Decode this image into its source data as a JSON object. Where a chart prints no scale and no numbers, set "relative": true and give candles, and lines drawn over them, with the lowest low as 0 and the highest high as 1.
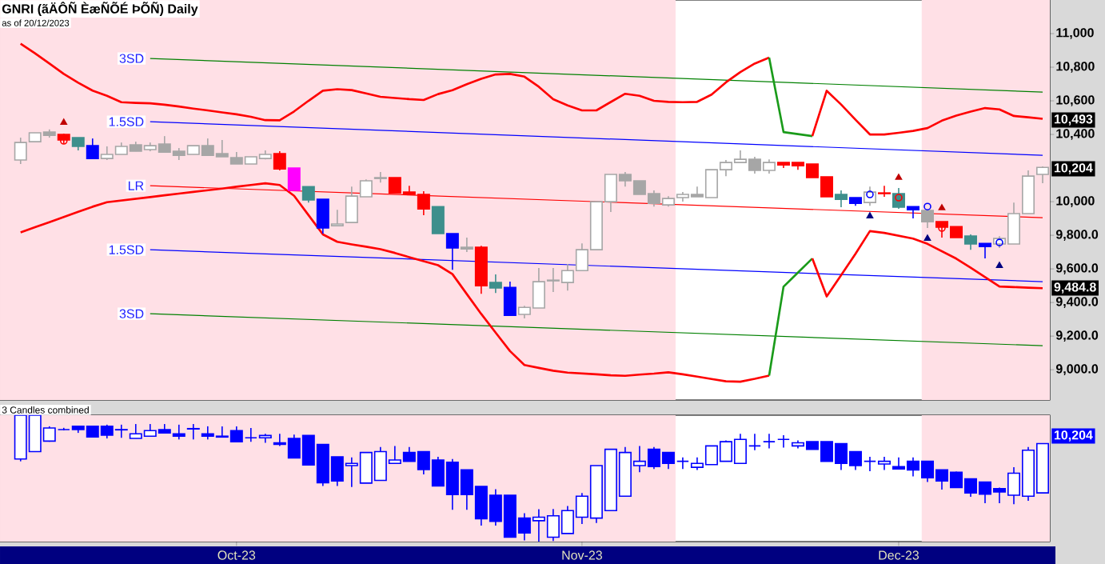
{
  "chart_data": [
    {
      "type": "candlestick",
      "title": "GNRI (ãÄÔÑ ÈæÑÕÉ ÞÕÑ) Daily",
      "subtitle": "as of 20/12/2023",
      "categories": [
        null,
        null,
        null,
        null,
        null,
        null,
        null,
        null,
        null,
        null,
        null,
        null,
        null,
        null,
        null,
        null,
        null,
        null,
        null,
        null,
        null,
        null,
        null,
        null,
        null,
        null,
        null,
        null,
        null,
        null,
        null,
        null,
        null,
        null,
        null,
        null,
        null,
        null,
        null,
        null,
        null,
        null,
        null,
        null,
        null,
        null,
        null,
        null,
        null,
        null,
        null,
        null,
        null,
        null,
        null,
        null,
        null,
        null,
        null,
        null,
        null,
        null,
        null,
        null,
        null,
        null,
        null,
        null,
        null,
        null,
        null,
        null
      ],
      "ohlc": [
        [
          10248,
          10381,
          10224,
          10352
        ],
        [
          10357,
          10410,
          10357,
          10410
        ],
        [
          10414,
          10430,
          10381,
          10395
        ],
        [
          10400,
          10405,
          10345,
          10367
        ],
        [
          10381,
          10381,
          10305,
          10329
        ],
        [
          10333,
          10376,
          10257,
          10257
        ],
        [
          10257,
          10329,
          10248,
          10281
        ],
        [
          10281,
          10352,
          10281,
          10329
        ],
        [
          10338,
          10357,
          10300,
          10300
        ],
        [
          10310,
          10352,
          10300,
          10333
        ],
        [
          10343,
          10390,
          10295,
          10295
        ],
        [
          10300,
          10319,
          10248,
          10276
        ],
        [
          10281,
          10333,
          10281,
          10333
        ],
        [
          10333,
          10376,
          10276,
          10276
        ],
        [
          10286,
          10367,
          10267,
          10267
        ],
        [
          10262,
          10295,
          10224,
          10224
        ],
        [
          10224,
          10267,
          10224,
          10267
        ],
        [
          10257,
          10305,
          10252,
          10281
        ],
        [
          10286,
          10300,
          10186,
          10195
        ],
        [
          10200,
          10200,
          10067,
          10067
        ],
        [
          10090,
          10090,
          9995,
          10010
        ],
        [
          10014,
          10014,
          9810,
          9843
        ],
        [
          9857,
          9952,
          9857,
          9867
        ],
        [
          9876,
          10090,
          9876,
          10033
        ],
        [
          10029,
          10133,
          10029,
          10124
        ],
        [
          10138,
          10176,
          10114,
          10143
        ],
        [
          10143,
          10143,
          10052,
          10052
        ],
        [
          10057,
          10095,
          10043,
          10043
        ],
        [
          10043,
          10062,
          9919,
          9957
        ],
        [
          9971,
          9971,
          9810,
          9810
        ],
        [
          9810,
          9810,
          9595,
          9724
        ],
        [
          9729,
          9786,
          9700,
          9719
        ],
        [
          9729,
          9738,
          9452,
          9500
        ],
        [
          9519,
          9567,
          9457,
          9486
        ],
        [
          9490,
          9524,
          9324,
          9324
        ],
        [
          9329,
          9381,
          9305,
          9371
        ],
        [
          9367,
          9605,
          9367,
          9524
        ],
        [
          9533,
          9605,
          9462,
          9529
        ],
        [
          9519,
          9629,
          9471,
          9590
        ],
        [
          9590,
          9752,
          9590,
          9714
        ],
        [
          9714,
          10000,
          9714,
          10000
        ],
        [
          10000,
          10162,
          9938,
          10162
        ],
        [
          10162,
          10176,
          10090,
          10124
        ],
        [
          10124,
          10124,
          10043,
          10043
        ],
        [
          10048,
          10067,
          9971,
          9990
        ],
        [
          9981,
          10033,
          9971,
          10019
        ],
        [
          10024,
          10057,
          10000,
          10043
        ],
        [
          10043,
          10090,
          10029,
          10029
        ],
        [
          10024,
          10190,
          10024,
          10190
        ],
        [
          10190,
          10248,
          10152,
          10233
        ],
        [
          10233,
          10305,
          10233,
          10252
        ],
        [
          10252,
          10267,
          10167,
          10186
        ],
        [
          10186,
          10252,
          10167,
          10233
        ],
        [
          10233,
          10233,
          10200,
          10219
        ],
        [
          10233,
          10233,
          10190,
          10214
        ],
        [
          10224,
          10224,
          10143,
          10143
        ],
        [
          10148,
          10148,
          10029,
          10029
        ],
        [
          10043,
          10067,
          9967,
          10014
        ],
        [
          10024,
          10024,
          9976,
          9990
        ],
        [
          9995,
          10090,
          9976,
          10057
        ],
        [
          10052,
          10095,
          10029,
          10048
        ],
        [
          10048,
          10081,
          9957,
          9967
        ],
        [
          9971,
          9971,
          9900,
          9952
        ],
        [
          9948,
          9952,
          9843,
          9881
        ],
        [
          9881,
          9881,
          9786,
          9848
        ],
        [
          9852,
          9852,
          9786,
          9786
        ],
        [
          9795,
          9805,
          9714,
          9748
        ],
        [
          9752,
          9752,
          9662,
          9733
        ],
        [
          9748,
          9795,
          9724,
          9781
        ],
        [
          9748,
          9995,
          9748,
          9929
        ],
        [
          9929,
          10186,
          9929,
          10152
        ],
        [
          10162,
          10210,
          10110,
          10204
        ]
      ],
      "colors": [
        "#a6a6a6",
        "#a6a6a6",
        "#a6a6a6",
        "#ff0000",
        "#3d8f8c",
        "#0000ff",
        "#a6a6a6",
        "#a6a6a6",
        "#a6a6a6",
        "#a6a6a6",
        "#a6a6a6",
        "#a6a6a6",
        "#a6a6a6",
        "#a6a6a6",
        "#a6a6a6",
        "#a6a6a6",
        "#a6a6a6",
        "#a6a6a6",
        "#ff0000",
        "#ff00ff",
        "#3d8f8c",
        "#0000ff",
        "#a6a6a6",
        "#a6a6a6",
        "#a6a6a6",
        "#a6a6a6",
        "#ff0000",
        "#ff0000",
        "#ff0000",
        "#3d8f8c",
        "#0000ff",
        "#a6a6a6",
        "#ff0000",
        "#3d8f8c",
        "#0000ff",
        "#a6a6a6",
        "#a6a6a6",
        "#a6a6a6",
        "#a6a6a6",
        "#a6a6a6",
        "#a6a6a6",
        "#a6a6a6",
        "#a6a6a6",
        "#a6a6a6",
        "#a6a6a6",
        "#a6a6a6",
        "#a6a6a6",
        "#a6a6a6",
        "#a6a6a6",
        "#a6a6a6",
        "#a6a6a6",
        "#a6a6a6",
        "#a6a6a6",
        "#ff0000",
        "#ff0000",
        "#ff0000",
        "#ff0000",
        "#3d8f8c",
        "#0000ff",
        "#a6a6a6",
        "#ff0000",
        "#3d8f8c",
        "#0000ff",
        "#a6a6a6",
        "#ff0000",
        "#ff0000",
        "#3d8f8c",
        "#0000ff",
        "#a6a6a6",
        "#a6a6a6",
        "#a6a6a6",
        "#a6a6a6"
      ],
      "ylim": [
        8820,
        11200
      ],
      "yticks": [
        {
          "value": 9000,
          "label": "9,000.0"
        },
        {
          "value": 9200,
          "label": "9,200.0"
        },
        {
          "value": 9400,
          "label": "9,400.0"
        },
        {
          "value": 9600,
          "label": "9,600.0"
        },
        {
          "value": 9800,
          "label": "9,800.0"
        },
        {
          "value": 10000,
          "label": "10,000"
        },
        {
          "value": 10400,
          "label": "10,400"
        },
        {
          "value": 10600,
          "label": "10,600"
        },
        {
          "value": 10800,
          "label": "10,800"
        },
        {
          "value": 11000,
          "label": "11,000"
        }
      ],
      "series": [
        {
          "type": "line",
          "name": "3SD",
          "color": "#008000",
          "values": [
            null,
            null,
            null,
            null,
            null,
            null,
            null,
            null,
            null,
            10852,
            null,
            null,
            null,
            null,
            null,
            null,
            null,
            null,
            null,
            null,
            null,
            null,
            null,
            null,
            null,
            null,
            null,
            null,
            null,
            null,
            null,
            null,
            null,
            null,
            null,
            null,
            null,
            null,
            null,
            null,
            null,
            null,
            null,
            null,
            null,
            null,
            null,
            null,
            null,
            null,
            null,
            null,
            null,
            null,
            null,
            null,
            null,
            null,
            null,
            null,
            null,
            null,
            null,
            null,
            null,
            null,
            null,
            null,
            null,
            null,
            null,
            10652
          ]
        },
        {
          "type": "line",
          "name": "1.5SD",
          "color": "#0000ff",
          "values": [
            null,
            null,
            null,
            null,
            null,
            null,
            null,
            null,
            null,
            10476,
            null,
            null,
            null,
            null,
            null,
            null,
            null,
            null,
            null,
            null,
            null,
            null,
            null,
            null,
            null,
            null,
            null,
            null,
            null,
            null,
            null,
            null,
            null,
            null,
            null,
            null,
            null,
            null,
            null,
            null,
            null,
            null,
            null,
            null,
            null,
            null,
            null,
            null,
            null,
            null,
            null,
            null,
            null,
            null,
            null,
            null,
            null,
            null,
            null,
            null,
            null,
            null,
            null,
            null,
            null,
            null,
            null,
            null,
            null,
            null,
            null,
            10276
          ]
        },
        {
          "type": "line",
          "name": "LR",
          "color": "#ff0000",
          "values": [
            null,
            null,
            null,
            null,
            null,
            null,
            null,
            null,
            null,
            10095,
            null,
            null,
            null,
            null,
            null,
            null,
            null,
            null,
            null,
            null,
            null,
            null,
            null,
            null,
            null,
            null,
            null,
            null,
            null,
            null,
            null,
            null,
            null,
            null,
            null,
            null,
            null,
            null,
            null,
            null,
            null,
            null,
            null,
            null,
            null,
            null,
            null,
            null,
            null,
            null,
            null,
            null,
            null,
            null,
            null,
            null,
            null,
            null,
            null,
            null,
            null,
            null,
            null,
            null,
            null,
            null,
            null,
            null,
            null,
            null,
            null,
            9905
          ]
        },
        {
          "type": "line",
          "name": "1.5SD",
          "color": "#0000ff",
          "values": [
            null,
            null,
            null,
            null,
            null,
            null,
            null,
            null,
            null,
            9714,
            null,
            null,
            null,
            null,
            null,
            null,
            null,
            null,
            null,
            null,
            null,
            null,
            null,
            null,
            null,
            null,
            null,
            null,
            null,
            null,
            null,
            null,
            null,
            null,
            null,
            null,
            null,
            null,
            null,
            null,
            null,
            null,
            null,
            null,
            null,
            null,
            null,
            null,
            null,
            null,
            null,
            null,
            null,
            null,
            null,
            null,
            null,
            null,
            null,
            null,
            null,
            null,
            null,
            null,
            null,
            null,
            null,
            null,
            null,
            null,
            null,
            9524
          ]
        },
        {
          "type": "line",
          "name": "3SD",
          "color": "#008000",
          "values": [
            null,
            null,
            null,
            null,
            null,
            null,
            null,
            null,
            null,
            9333,
            null,
            null,
            null,
            null,
            null,
            null,
            null,
            null,
            null,
            null,
            null,
            null,
            null,
            null,
            null,
            null,
            null,
            null,
            null,
            null,
            null,
            null,
            null,
            null,
            null,
            null,
            null,
            null,
            null,
            null,
            null,
            null,
            null,
            null,
            null,
            null,
            null,
            null,
            null,
            null,
            null,
            null,
            null,
            null,
            null,
            null,
            null,
            null,
            null,
            null,
            null,
            null,
            null,
            null,
            null,
            null,
            null,
            null,
            null,
            null,
            null,
            9143
          ]
        },
        {
          "type": "line",
          "color": "#ff0000",
          "values": [
            10940,
            10883,
            10822,
            10760,
            10708,
            10661,
            10630,
            10592,
            10588,
            10585,
            10577,
            10566,
            10554,
            10543,
            10531,
            10520,
            10505,
            10485,
            10484,
            10537,
            10600,
            10660,
            10669,
            10664,
            10644,
            10624,
            10617,
            10610,
            10605,
            10640,
            10663,
            10699,
            10731,
            10757,
            10760,
            10744,
            10684,
            10610,
            10573,
            10543,
            10543,
            10593,
            10642,
            10630,
            10600,
            10594,
            10592,
            10594,
            10637,
            10710,
            10771,
            10822,
            10857,
            null,
            null,
            null,
            null,
            null,
            null,
            null,
            null,
            null,
            null,
            null,
            null,
            null,
            null,
            null,
            null,
            null,
            null,
            null
          ]
        },
        {
          "type": "line",
          "color": "#1a9b1a",
          "values": [
            null,
            null,
            null,
            null,
            null,
            null,
            null,
            null,
            null,
            null,
            null,
            null,
            null,
            null,
            null,
            null,
            null,
            null,
            null,
            null,
            null,
            null,
            null,
            null,
            null,
            null,
            null,
            null,
            null,
            null,
            null,
            null,
            null,
            null,
            null,
            null,
            null,
            null,
            null,
            null,
            null,
            null,
            null,
            null,
            null,
            null,
            null,
            null,
            null,
            null,
            null,
            null,
            10857,
            10414,
            10402,
            10390,
            null,
            null,
            null,
            null,
            null,
            null,
            null,
            null,
            null,
            null,
            null,
            null,
            null,
            null,
            null,
            null
          ]
        },
        {
          "type": "line",
          "color": "#ff0000",
          "values": [
            null,
            null,
            null,
            null,
            null,
            null,
            null,
            null,
            null,
            null,
            null,
            null,
            null,
            null,
            null,
            null,
            null,
            null,
            null,
            null,
            null,
            null,
            null,
            null,
            null,
            null,
            null,
            null,
            null,
            null,
            null,
            null,
            null,
            null,
            null,
            null,
            null,
            null,
            null,
            null,
            null,
            null,
            null,
            null,
            null,
            null,
            null,
            null,
            null,
            null,
            null,
            null,
            null,
            null,
            null,
            10390,
            10660,
            10578,
            10488,
            10400,
            10400,
            10410,
            10421,
            10438,
            10482,
            10512,
            10536,
            10557,
            10549,
            10510,
            10502,
            10493
          ]
        },
        {
          "type": "line",
          "color": "#ff0000",
          "values": [
            9817,
            9848,
            9878,
            9909,
            9940,
            9970,
            9997,
            10007,
            10017,
            10027,
            10038,
            10048,
            10058,
            10068,
            10078,
            10089,
            10099,
            10109,
            10099,
            10035,
            9920,
            9805,
            9761,
            9746,
            9732,
            9717,
            9695,
            9670,
            9646,
            9622,
            9569,
            9450,
            9332,
            9221,
            9111,
            9028,
            9011,
            8994,
            8983,
            8978,
            8973,
            8967,
            8964,
            8971,
            8977,
            8985,
            8973,
            8959,
            8945,
            8931,
            8929,
            8946,
            8965,
            null,
            null,
            null,
            null,
            null,
            null,
            null,
            null,
            null,
            null,
            null,
            null,
            null,
            null,
            null,
            null,
            null,
            null,
            null
          ]
        },
        {
          "type": "line",
          "color": "#1a9b1a",
          "values": [
            null,
            null,
            null,
            null,
            null,
            null,
            null,
            null,
            null,
            null,
            null,
            null,
            null,
            null,
            null,
            null,
            null,
            null,
            null,
            null,
            null,
            null,
            null,
            null,
            null,
            null,
            null,
            null,
            null,
            null,
            null,
            null,
            null,
            null,
            null,
            null,
            null,
            null,
            null,
            null,
            null,
            null,
            null,
            null,
            null,
            null,
            null,
            null,
            null,
            null,
            null,
            null,
            8965,
            9494,
            9578,
            9662,
            null,
            null,
            null,
            null,
            null,
            null,
            null,
            null,
            null,
            null,
            null,
            null,
            null,
            null,
            null,
            null
          ]
        },
        {
          "type": "line",
          "color": "#ff0000",
          "values": [
            null,
            null,
            null,
            null,
            null,
            null,
            null,
            null,
            null,
            null,
            null,
            null,
            null,
            null,
            null,
            null,
            null,
            null,
            null,
            null,
            null,
            null,
            null,
            null,
            null,
            null,
            null,
            null,
            null,
            null,
            null,
            null,
            null,
            null,
            null,
            null,
            null,
            null,
            null,
            null,
            null,
            null,
            null,
            null,
            null,
            null,
            null,
            null,
            null,
            null,
            null,
            null,
            null,
            null,
            null,
            9662,
            9436,
            9563,
            9690,
            9825,
            9814,
            9797,
            9780,
            9749,
            9705,
            9661,
            9607,
            9551,
            9495,
            9492,
            9488,
            9485
          ]
        },
        {
          "type": "scatter",
          "marker": "triangle",
          "color": "#c00000",
          "values": [
            null,
            null,
            null,
            10471,
            null,
            null,
            null,
            null,
            null,
            null,
            null,
            null,
            null,
            null,
            null,
            null,
            null,
            null,
            null,
            null,
            null,
            null,
            null,
            null,
            null,
            null,
            null,
            null,
            null,
            null,
            null,
            null,
            null,
            null,
            null,
            null,
            null,
            null,
            null,
            null,
            null,
            null,
            null,
            null,
            null,
            null,
            null,
            null,
            null,
            null,
            null,
            null,
            null,
            null,
            null,
            null,
            null,
            null,
            null,
            null,
            null,
            10143,
            null,
            null,
            9962,
            null,
            null,
            null,
            null,
            null,
            null,
            null
          ]
        },
        {
          "type": "scatter",
          "marker": "triangle",
          "color": "#000080",
          "values": [
            null,
            null,
            null,
            null,
            null,
            null,
            null,
            null,
            null,
            null,
            null,
            null,
            null,
            null,
            null,
            null,
            null,
            null,
            null,
            null,
            null,
            null,
            null,
            null,
            null,
            null,
            null,
            null,
            null,
            null,
            null,
            null,
            null,
            null,
            null,
            null,
            null,
            null,
            null,
            null,
            null,
            null,
            null,
            null,
            null,
            null,
            null,
            null,
            null,
            null,
            null,
            null,
            null,
            null,
            null,
            null,
            null,
            null,
            null,
            9914,
            null,
            null,
            null,
            9781,
            null,
            null,
            null,
            null,
            9619,
            null,
            null,
            null
          ]
        },
        {
          "type": "scatter",
          "marker": "circle",
          "color": "#0000ff",
          "values": [
            null,
            null,
            null,
            null,
            null,
            null,
            null,
            null,
            null,
            null,
            null,
            null,
            null,
            null,
            null,
            null,
            null,
            null,
            null,
            null,
            null,
            null,
            null,
            null,
            null,
            null,
            null,
            null,
            null,
            null,
            null,
            null,
            null,
            null,
            null,
            null,
            null,
            null,
            null,
            null,
            null,
            null,
            null,
            null,
            null,
            null,
            null,
            null,
            null,
            null,
            null,
            null,
            null,
            null,
            null,
            null,
            null,
            null,
            null,
            10043,
            null,
            null,
            null,
            9971,
            null,
            null,
            null,
            null,
            9757,
            null,
            null,
            null
          ]
        },
        {
          "type": "scatter",
          "marker": "circle",
          "color": "#ff0000",
          "values": [
            null,
            null,
            null,
            10362,
            null,
            null,
            null,
            null,
            null,
            null,
            null,
            null,
            null,
            null,
            null,
            null,
            null,
            null,
            null,
            null,
            null,
            null,
            null,
            null,
            null,
            null,
            null,
            null,
            null,
            null,
            null,
            null,
            null,
            null,
            null,
            null,
            null,
            null,
            null,
            null,
            null,
            null,
            null,
            null,
            null,
            null,
            null,
            null,
            null,
            null,
            null,
            null,
            null,
            null,
            null,
            null,
            null,
            null,
            null,
            null,
            null,
            10024,
            null,
            null,
            9843,
            null,
            null,
            null,
            null,
            null,
            null,
            null
          ]
        }
      ],
      "annotations": [
        "10,493",
        "10,204",
        "9,484.8"
      ],
      "tick_labels": "y"
    },
    {
      "type": "candlestick",
      "title": "3 Candles combined",
      "categories": [
        null,
        null,
        null,
        null,
        null,
        null,
        null,
        null,
        null,
        null,
        null,
        null,
        null,
        null,
        null,
        "Oct-23",
        null,
        null,
        null,
        null,
        null,
        null,
        null,
        null,
        null,
        null,
        null,
        null,
        null,
        null,
        null,
        null,
        null,
        null,
        null,
        null,
        null,
        null,
        null,
        "Nov-23",
        null,
        null,
        null,
        null,
        null,
        null,
        null,
        null,
        null,
        null,
        null,
        null,
        null,
        null,
        null,
        null,
        null,
        null,
        null,
        null,
        null,
        "Dec-23",
        null,
        null,
        null,
        null,
        null,
        null,
        null,
        null,
        null,
        null
      ],
      "ohlc": [
        [
          0.653,
          1.0,
          0.635,
          1.0
        ],
        [
          0.712,
          1.0,
          0.712,
          1.0
        ],
        [
          0.795,
          0.912,
          0.79,
          0.899
        ],
        [
          0.886,
          0.9,
          0.88,
          0.886
        ],
        [
          0.912,
          0.912,
          0.86,
          0.886
        ],
        [
          0.912,
          0.912,
          0.827,
          0.827
        ],
        [
          0.912,
          0.925,
          0.816,
          0.842
        ],
        [
          0.886,
          0.925,
          0.821,
          0.884
        ],
        [
          0.816,
          0.93,
          0.816,
          0.853
        ],
        [
          0.834,
          0.93,
          0.834,
          0.878
        ],
        [
          0.886,
          0.93,
          0.86,
          0.86
        ],
        [
          0.853,
          0.925,
          0.808,
          0.834
        ],
        [
          0.894,
          0.93,
          0.808,
          0.891
        ],
        [
          0.853,
          0.912,
          0.808,
          0.834
        ],
        [
          0.834,
          0.912,
          0.827,
          0.827
        ],
        [
          0.878,
          0.912,
          0.79,
          0.79
        ],
        [
          0.821,
          0.899,
          0.79,
          0.821
        ],
        [
          0.821,
          0.853,
          0.782,
          0.839
        ],
        [
          0.782,
          0.853,
          0.757,
          0.769
        ],
        [
          0.816,
          0.847,
          0.661,
          0.661
        ],
        [
          0.839,
          0.839,
          0.606,
          0.606
        ],
        [
          0.769,
          0.769,
          0.44,
          0.466
        ],
        [
          0.671,
          0.671,
          0.44,
          0.479
        ],
        [
          0.601,
          0.666,
          0.432,
          0.619
        ],
        [
          0.463,
          0.705,
          0.463,
          0.705
        ],
        [
          0.484,
          0.749,
          0.484,
          0.712
        ],
        [
          0.619,
          0.757,
          0.619,
          0.645
        ],
        [
          0.705,
          0.749,
          0.635,
          0.635
        ],
        [
          0.712,
          0.712,
          0.531,
          0.57
        ],
        [
          0.645,
          0.671,
          0.44,
          0.44
        ],
        [
          0.627,
          0.653,
          0.251,
          0.372
        ],
        [
          0.567,
          0.567,
          0.251,
          0.372
        ],
        [
          0.437,
          0.437,
          0.126,
          0.18
        ],
        [
          0.367,
          0.414,
          0.126,
          0.16
        ],
        [
          0.367,
          0.367,
          0.035,
          0.035
        ],
        [
          0.186,
          0.225,
          0.009,
          0.069
        ],
        [
          0.165,
          0.256,
          0.0,
          0.193
        ],
        [
          0.035,
          0.258,
          0.004,
          0.204
        ],
        [
          0.064,
          0.282,
          0.064,
          0.245
        ],
        [
          0.193,
          0.385,
          0.139,
          0.359
        ],
        [
          0.186,
          0.601,
          0.147,
          0.601
        ],
        [
          0.245,
          0.73,
          0.245,
          0.73
        ],
        [
          0.359,
          0.749,
          0.359,
          0.705
        ],
        [
          0.601,
          0.757,
          0.549,
          0.635
        ],
        [
          0.73,
          0.749,
          0.575,
          0.593
        ],
        [
          0.705,
          0.705,
          0.575,
          0.619
        ],
        [
          0.635,
          0.666,
          0.575,
          0.635
        ],
        [
          0.588,
          0.666,
          0.567,
          0.619
        ],
        [
          0.609,
          0.757,
          0.609,
          0.757
        ],
        [
          0.635,
          0.8,
          0.635,
          0.79
        ],
        [
          0.619,
          0.853,
          0.619,
          0.808
        ],
        [
          0.757,
          0.853,
          0.723,
          0.757
        ],
        [
          0.79,
          0.853,
          0.738,
          0.79
        ],
        [
          0.808,
          0.842,
          0.743,
          0.808
        ],
        [
          0.757,
          0.8,
          0.738,
          0.782
        ],
        [
          0.79,
          0.79,
          0.73,
          0.73
        ],
        [
          0.79,
          0.79,
          0.635,
          0.635
        ],
        [
          0.775,
          0.775,
          0.567,
          0.619
        ],
        [
          0.712,
          0.712,
          0.567,
          0.601
        ],
        [
          0.635,
          0.671,
          0.557,
          0.635
        ],
        [
          0.614,
          0.671,
          0.567,
          0.635
        ],
        [
          0.593,
          0.666,
          0.575,
          0.575
        ],
        [
          0.635,
          0.666,
          0.515,
          0.567
        ],
        [
          0.635,
          0.635,
          0.471,
          0.505
        ],
        [
          0.567,
          0.567,
          0.411,
          0.479
        ],
        [
          0.549,
          0.554,
          0.427,
          0.427
        ],
        [
          0.497,
          0.497,
          0.354,
          0.385
        ],
        [
          0.471,
          0.471,
          0.303,
          0.375
        ],
        [
          0.419,
          0.427,
          0.303,
          0.393
        ],
        [
          0.367,
          0.588,
          0.295,
          0.541
        ],
        [
          0.359,
          0.749,
          0.323,
          0.723
        ],
        [
          0.385,
          0.775,
          0.385,
          0.775
        ]
      ],
      "color": "#0000ff",
      "relative": true,
      "annotations": [
        "10,204"
      ],
      "tick_labels": "x"
    }
  ]
}
